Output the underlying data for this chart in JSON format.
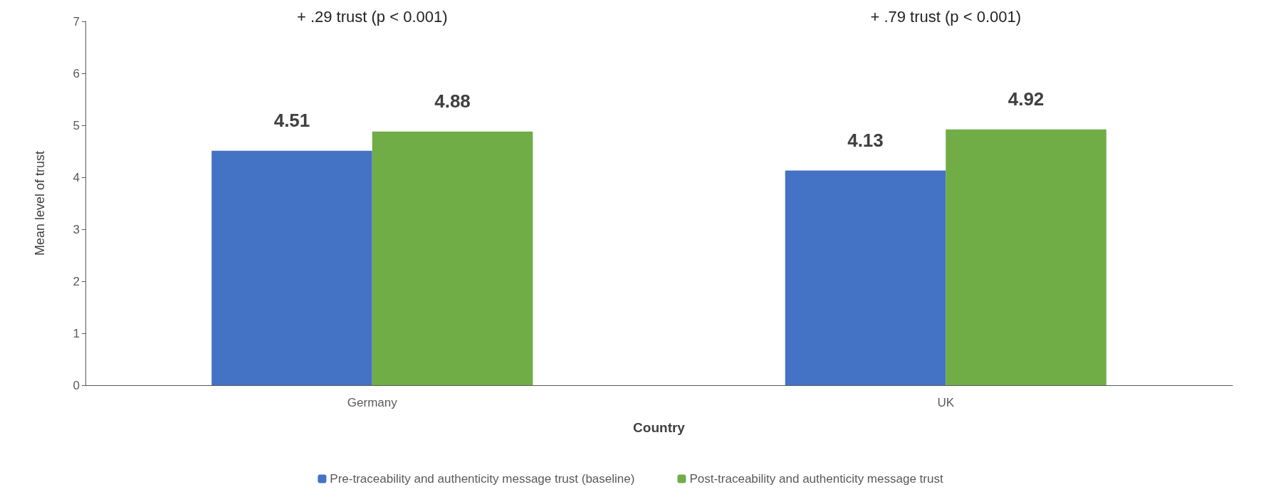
{
  "chart_data": {
    "type": "bar",
    "xlabel": "Country",
    "ylabel": "Mean level of trust",
    "categories": [
      "Germany",
      "UK"
    ],
    "series": [
      {
        "name": "Pre-traceability and authenticity message trust (baseline)",
        "color": "#4472c4",
        "values": [
          4.51,
          4.13
        ]
      },
      {
        "name": "Post-traceability and authenticity message trust",
        "color": "#70ad47",
        "values": [
          4.88,
          4.92
        ]
      }
    ],
    "ylim": [
      0,
      7
    ],
    "yticks": [
      0,
      1,
      2,
      3,
      4,
      5,
      6,
      7
    ],
    "grid": false,
    "legend": "bottom",
    "data_labels": true,
    "annotations": [
      "+ .29 trust (p < 0.001)",
      "+ .79 trust (p < 0.001)"
    ]
  }
}
